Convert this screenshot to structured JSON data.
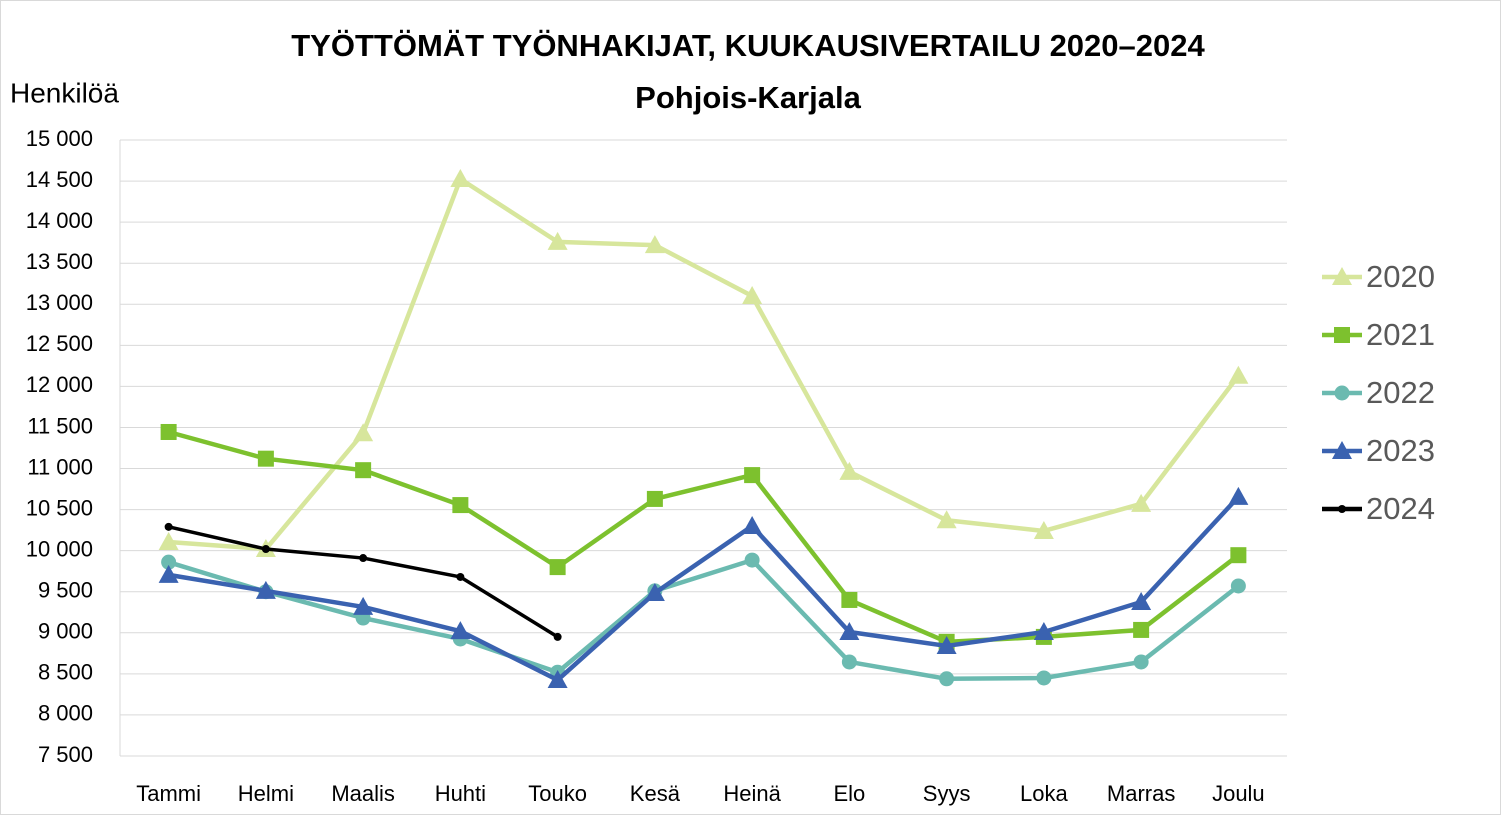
{
  "chart_data": {
    "type": "line",
    "title": "TYÖTTÖMÄT TYÖNHAKIJAT, KUUKAUSIVERTAILU 2020–2024",
    "subtitle": "Pohjois-Karjala",
    "y_label": "Henkilöä",
    "categories": [
      "Tammi",
      "Helmi",
      "Maalis",
      "Huhti",
      "Touko",
      "Kesä",
      "Heinä",
      "Elo",
      "Syys",
      "Loka",
      "Marras",
      "Joulu"
    ],
    "series": [
      {
        "name": "2020",
        "color": "#d7e69c",
        "marker": "triangle",
        "values": [
          10105,
          10020,
          11430,
          14525,
          13760,
          13720,
          13100,
          10960,
          10370,
          10240,
          10570,
          12130
        ]
      },
      {
        "name": "2021",
        "color": "#7dc12e",
        "marker": "square",
        "values": [
          11445,
          11120,
          10980,
          10555,
          9800,
          10630,
          10920,
          9400,
          8890,
          8950,
          9035,
          9945
        ]
      },
      {
        "name": "2022",
        "color": "#6bbab0",
        "marker": "circle",
        "values": [
          9860,
          9500,
          9180,
          8925,
          8520,
          9510,
          9885,
          8645,
          8440,
          8450,
          8645,
          9570
        ]
      },
      {
        "name": "2023",
        "color": "#3a62b0",
        "marker": "triangle",
        "values": [
          9705,
          9510,
          9315,
          9020,
          8425,
          9485,
          10300,
          9010,
          8840,
          9010,
          9375,
          10655
        ]
      },
      {
        "name": "2024",
        "color": "#000000",
        "marker": "dot",
        "values": [
          10290,
          10020,
          9910,
          9680,
          8950,
          null,
          null,
          null,
          null,
          null,
          null,
          null
        ]
      }
    ],
    "ylim": [
      7500,
      15000
    ],
    "yticks": [
      {
        "value": 7500,
        "label": "7 500"
      },
      {
        "value": 8000,
        "label": "8 000"
      },
      {
        "value": 8500,
        "label": "8 500"
      },
      {
        "value": 9000,
        "label": "9 000"
      },
      {
        "value": 9500,
        "label": "9 500"
      },
      {
        "value": 10000,
        "label": "10 000"
      },
      {
        "value": 10500,
        "label": "10 500"
      },
      {
        "value": 11000,
        "label": "11 000"
      },
      {
        "value": 11500,
        "label": "11 500"
      },
      {
        "value": 12000,
        "label": "12 000"
      },
      {
        "value": 12500,
        "label": "12 500"
      },
      {
        "value": 13000,
        "label": "13 000"
      },
      {
        "value": 13500,
        "label": "13 500"
      },
      {
        "value": 14000,
        "label": "14 000"
      },
      {
        "value": 14500,
        "label": "14 500"
      },
      {
        "value": 15000,
        "label": "15 000"
      }
    ],
    "grid": true,
    "legend": "right"
  }
}
